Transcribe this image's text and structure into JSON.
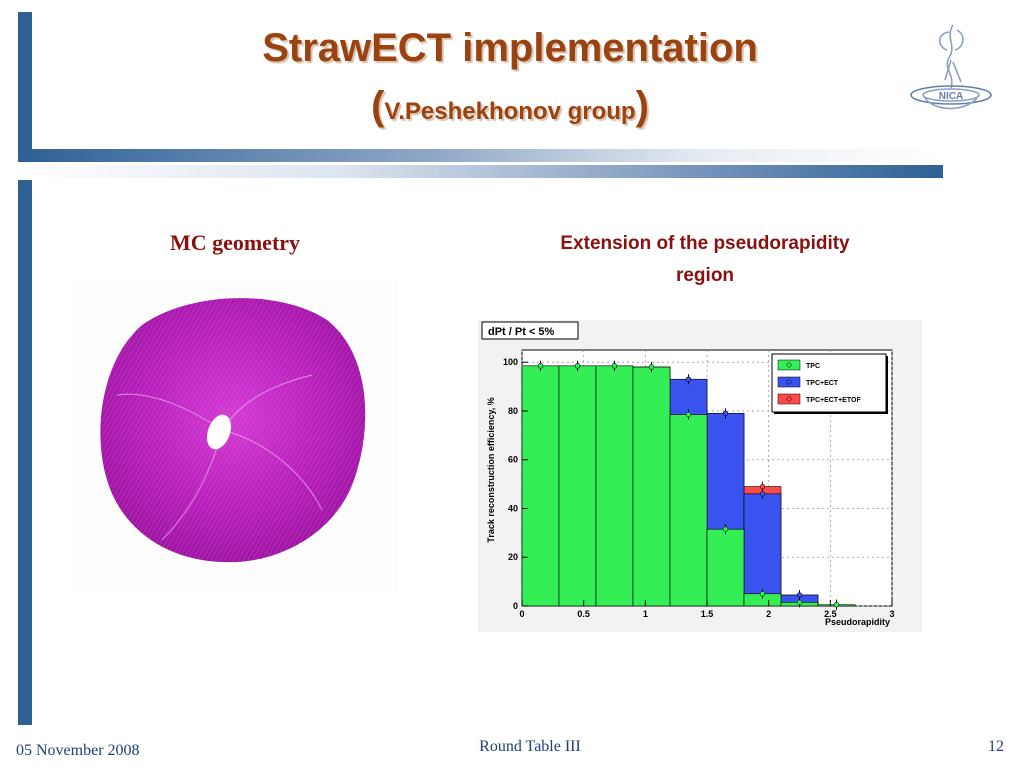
{
  "slide": {
    "title": "StrawECT implementation",
    "subtitle_open": "(",
    "subtitle": "V.Peshekhonov group",
    "subtitle_close": ")",
    "left_caption": "MC geometry",
    "right_caption_line1": "Extension of the pseudorapidity",
    "right_caption_line2": "region",
    "colors": {
      "title": "#9b4310",
      "frame": "#2e6094",
      "caption": "#8b1010",
      "footer": "#1f3f7a"
    }
  },
  "footer": {
    "date": "05 November 2008",
    "center": "Round Table III",
    "page": "12"
  },
  "chart_data": {
    "type": "bar",
    "title": "dPt / Pt < 5%",
    "xlabel": "Pseudorapidity",
    "ylabel": "Track reconstruction efficiency, %",
    "xlim": [
      0,
      3
    ],
    "ylim": [
      0,
      105
    ],
    "xticks": [
      "0",
      "0.5",
      "1",
      "1.5",
      "2",
      "2.5",
      "3"
    ],
    "yticks": [
      "0",
      "20",
      "40",
      "60",
      "80",
      "100"
    ],
    "grid": true,
    "legend_position": "top-right",
    "bin_edges": [
      0,
      0.3,
      0.6,
      0.9,
      1.2,
      1.5,
      1.8,
      2.1,
      2.4,
      2.7,
      3.0
    ],
    "series": [
      {
        "name": "TPC+ECT+ETOF",
        "color": "#ff4a4a",
        "points": [
          98.5,
          98.5,
          98.5,
          98,
          93,
          79,
          49,
          4.5,
          0.5,
          0
        ]
      },
      {
        "name": "TPC+ECT",
        "color": "#3a52ee",
        "points": [
          98.5,
          98.5,
          98.5,
          98,
          93,
          79,
          46,
          4.5,
          0.5,
          0
        ]
      },
      {
        "name": "TPC",
        "color": "#33ee55",
        "points": [
          98.5,
          98.5,
          98.5,
          98,
          78.5,
          31.5,
          5,
          1.5,
          0.5,
          0
        ]
      }
    ]
  }
}
